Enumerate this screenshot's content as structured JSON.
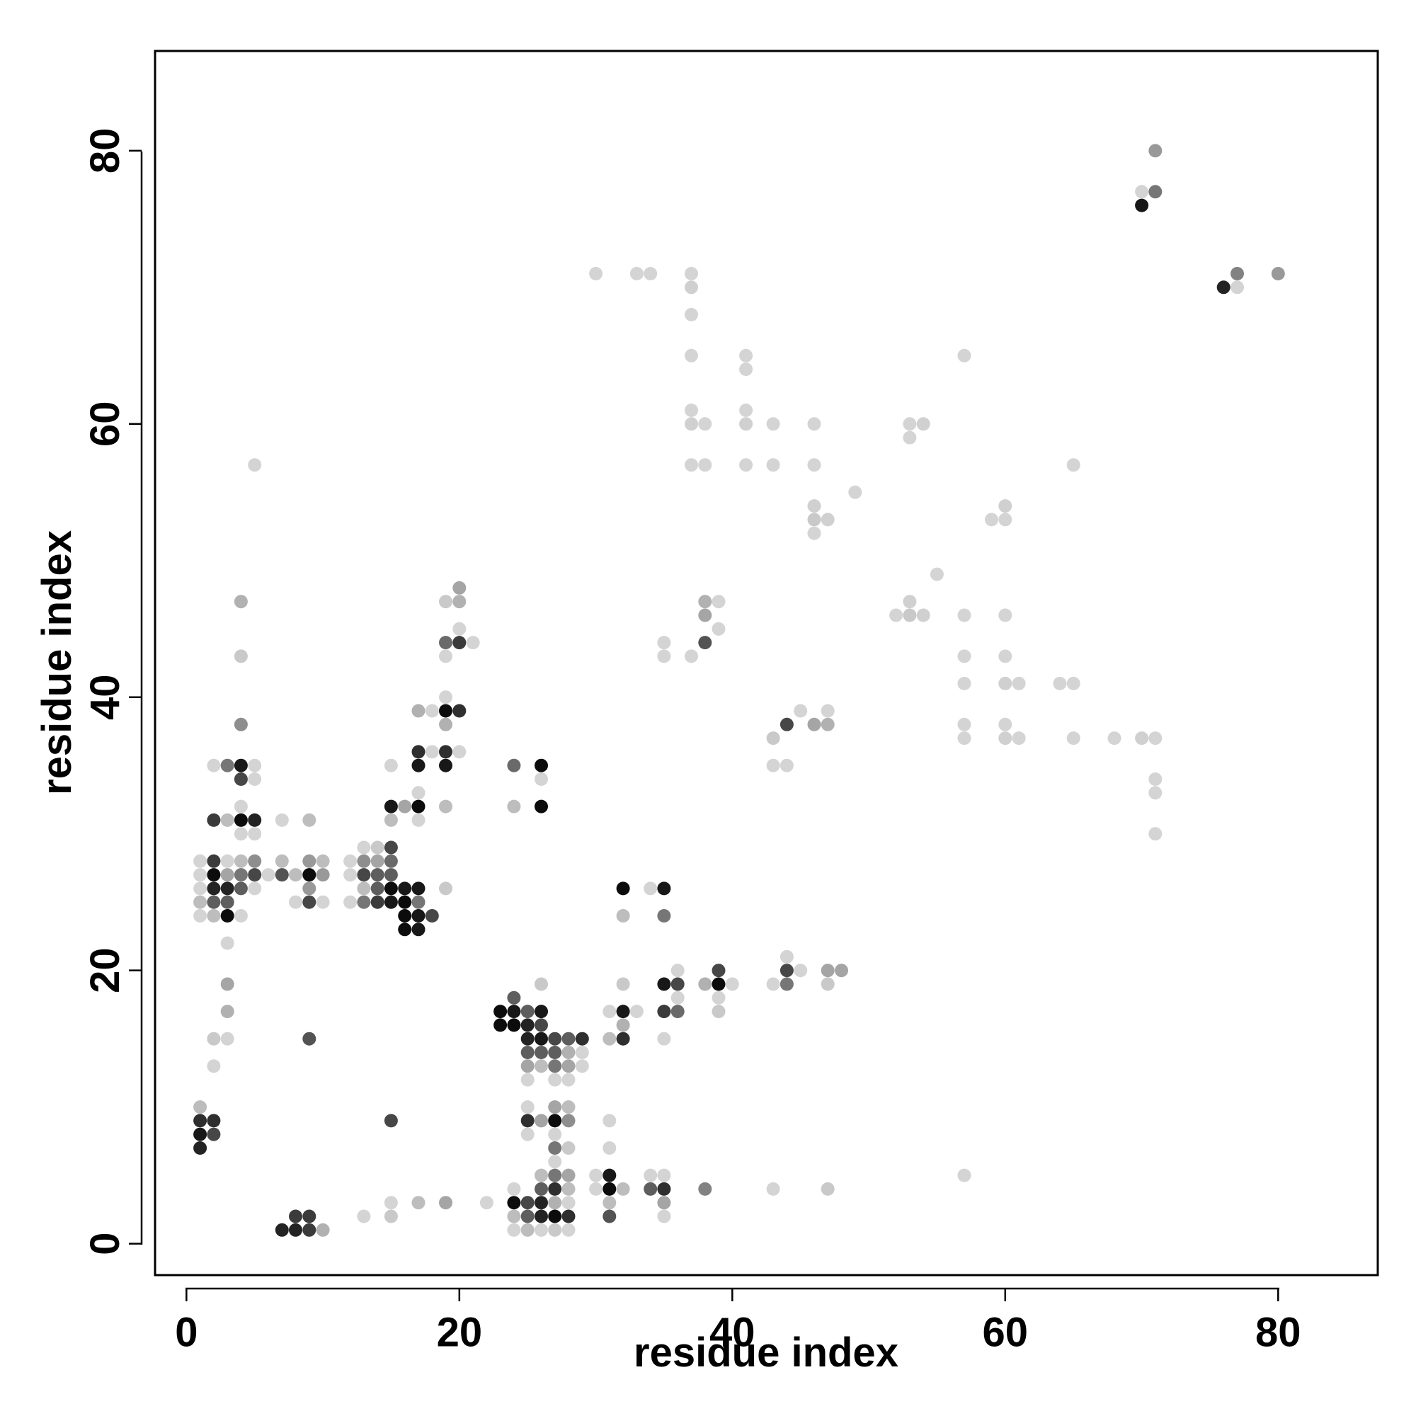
{
  "chart_data": {
    "type": "scatter",
    "title": "",
    "xlabel": "residue index",
    "ylabel": "residue index",
    "xlim": [
      -2.3,
      87.3
    ],
    "ylim": [
      -2.3,
      87.3
    ],
    "x_ticks": [
      0,
      20,
      40,
      60,
      80
    ],
    "y_ticks": [
      0,
      20,
      40,
      60,
      80
    ],
    "x_tick_labels": [
      "0",
      "20",
      "40",
      "60",
      "80"
    ],
    "y_tick_labels": [
      "0",
      "20",
      "40",
      "60",
      "80"
    ],
    "grid": false,
    "legend": "none",
    "value_encoding": "grayscale intensity (0 = light, 1 = dark)",
    "points": [
      [
        71,
        80,
        0.35
      ],
      [
        70,
        77,
        0.1
      ],
      [
        71,
        77,
        0.5
      ],
      [
        70,
        76,
        0.9
      ],
      [
        76,
        70,
        0.85
      ],
      [
        77,
        71,
        0.45
      ],
      [
        77,
        70,
        0.1
      ],
      [
        80,
        71,
        0.35
      ],
      [
        30,
        71,
        0.1
      ],
      [
        33,
        71,
        0.1
      ],
      [
        34,
        71,
        0.1
      ],
      [
        37,
        71,
        0.1
      ],
      [
        37,
        70,
        0.12
      ],
      [
        37,
        68,
        0.1
      ],
      [
        37,
        65,
        0.1
      ],
      [
        41,
        65,
        0.1
      ],
      [
        41,
        64,
        0.1
      ],
      [
        37,
        61,
        0.1
      ],
      [
        41,
        61,
        0.1
      ],
      [
        37,
        60,
        0.12
      ],
      [
        38,
        60,
        0.1
      ],
      [
        41,
        60,
        0.12
      ],
      [
        43,
        60,
        0.1
      ],
      [
        46,
        60,
        0.1
      ],
      [
        53,
        60,
        0.1
      ],
      [
        54,
        60,
        0.12
      ],
      [
        53,
        59,
        0.1
      ],
      [
        37,
        57,
        0.1
      ],
      [
        38,
        57,
        0.1
      ],
      [
        41,
        57,
        0.1
      ],
      [
        43,
        57,
        0.1
      ],
      [
        46,
        57,
        0.1
      ],
      [
        65,
        57,
        0.1
      ],
      [
        5,
        57,
        0.1
      ],
      [
        49,
        55,
        0.1
      ],
      [
        46,
        54,
        0.12
      ],
      [
        46,
        53,
        0.15
      ],
      [
        47,
        53,
        0.12
      ],
      [
        46,
        52,
        0.1
      ],
      [
        59,
        53,
        0.1
      ],
      [
        60,
        53,
        0.1
      ],
      [
        60,
        54,
        0.12
      ],
      [
        57,
        65,
        0.1
      ],
      [
        55,
        49,
        0.1
      ],
      [
        52,
        46,
        0.1
      ],
      [
        53,
        46,
        0.15
      ],
      [
        53,
        47,
        0.12
      ],
      [
        54,
        46,
        0.12
      ],
      [
        57,
        46,
        0.1
      ],
      [
        60,
        46,
        0.1
      ],
      [
        57,
        43,
        0.1
      ],
      [
        60,
        43,
        0.1
      ],
      [
        57,
        41,
        0.1
      ],
      [
        60,
        41,
        0.12
      ],
      [
        61,
        41,
        0.1
      ],
      [
        64,
        41,
        0.1
      ],
      [
        65,
        41,
        0.1
      ],
      [
        57,
        38,
        0.1
      ],
      [
        60,
        38,
        0.1
      ],
      [
        57,
        37,
        0.1
      ],
      [
        60,
        37,
        0.12
      ],
      [
        61,
        37,
        0.1
      ],
      [
        65,
        37,
        0.1
      ],
      [
        68,
        37,
        0.1
      ],
      [
        70,
        37,
        0.12
      ],
      [
        71,
        37,
        0.1
      ],
      [
        71,
        34,
        0.1
      ],
      [
        71,
        33,
        0.1
      ],
      [
        71,
        30,
        0.1
      ],
      [
        57,
        5,
        0.1
      ],
      [
        38,
        47,
        0.25
      ],
      [
        39,
        47,
        0.1
      ],
      [
        38,
        46,
        0.3
      ],
      [
        39,
        45,
        0.1
      ],
      [
        35,
        44,
        0.1
      ],
      [
        35,
        43,
        0.1
      ],
      [
        37,
        43,
        0.1
      ],
      [
        38,
        44,
        0.65
      ],
      [
        43,
        37,
        0.15
      ],
      [
        44,
        38,
        0.7
      ],
      [
        45,
        39,
        0.1
      ],
      [
        43,
        35,
        0.1
      ],
      [
        44,
        35,
        0.1
      ],
      [
        46,
        38,
        0.3
      ],
      [
        47,
        38,
        0.25
      ],
      [
        47,
        39,
        0.1
      ],
      [
        43,
        19,
        0.1
      ],
      [
        44,
        19,
        0.5
      ],
      [
        44,
        20,
        0.7
      ],
      [
        44,
        21,
        0.1
      ],
      [
        45,
        20,
        0.1
      ],
      [
        47,
        20,
        0.3
      ],
      [
        48,
        20,
        0.3
      ],
      [
        47,
        19,
        0.15
      ],
      [
        38,
        19,
        0.25
      ],
      [
        39,
        19,
        0.95
      ],
      [
        39,
        20,
        0.7
      ],
      [
        40,
        19,
        0.1
      ],
      [
        39,
        18,
        0.1
      ],
      [
        39,
        17,
        0.15
      ],
      [
        35,
        19,
        0.9
      ],
      [
        36,
        19,
        0.7
      ],
      [
        36,
        20,
        0.1
      ],
      [
        35,
        17,
        0.75
      ],
      [
        36,
        17,
        0.55
      ],
      [
        36,
        18,
        0.1
      ],
      [
        35,
        15,
        0.1
      ],
      [
        32,
        26,
        0.95
      ],
      [
        34,
        26,
        0.1
      ],
      [
        35,
        26,
        0.9
      ],
      [
        32,
        24,
        0.2
      ],
      [
        35,
        24,
        0.5
      ],
      [
        31,
        17,
        0.1
      ],
      [
        32,
        17,
        0.9
      ],
      [
        33,
        17,
        0.1
      ],
      [
        32,
        19,
        0.15
      ],
      [
        32,
        16,
        0.25
      ],
      [
        31,
        15,
        0.2
      ],
      [
        32,
        15,
        0.8
      ],
      [
        38,
        4,
        0.45
      ],
      [
        43,
        4,
        0.1
      ],
      [
        47,
        4,
        0.15
      ],
      [
        31,
        9,
        0.1
      ],
      [
        31,
        7,
        0.1
      ],
      [
        31,
        5,
        0.9
      ],
      [
        31,
        4,
        0.95
      ],
      [
        31,
        3,
        0.2
      ],
      [
        31,
        2,
        0.65
      ],
      [
        30,
        5,
        0.1
      ],
      [
        30,
        4,
        0.1
      ],
      [
        32,
        4,
        0.2
      ],
      [
        34,
        5,
        0.1
      ],
      [
        34,
        4,
        0.6
      ],
      [
        35,
        4,
        0.8
      ],
      [
        35,
        5,
        0.1
      ],
      [
        35,
        3,
        0.3
      ],
      [
        35,
        2,
        0.1
      ],
      [
        23,
        17,
        0.95
      ],
      [
        24,
        17,
        0.9
      ],
      [
        25,
        17,
        0.6
      ],
      [
        26,
        17,
        0.9
      ],
      [
        24,
        18,
        0.6
      ],
      [
        23,
        16,
        0.95
      ],
      [
        24,
        16,
        0.95
      ],
      [
        25,
        16,
        0.85
      ],
      [
        26,
        16,
        0.7
      ],
      [
        25,
        15,
        0.85
      ],
      [
        26,
        15,
        0.9
      ],
      [
        27,
        15,
        0.7
      ],
      [
        28,
        15,
        0.6
      ],
      [
        29,
        15,
        0.8
      ],
      [
        25,
        14,
        0.6
      ],
      [
        26,
        14,
        0.6
      ],
      [
        27,
        14,
        0.6
      ],
      [
        28,
        14,
        0.25
      ],
      [
        29,
        14,
        0.1
      ],
      [
        25,
        13,
        0.3
      ],
      [
        26,
        13,
        0.2
      ],
      [
        27,
        13,
        0.5
      ],
      [
        28,
        13,
        0.3
      ],
      [
        29,
        13,
        0.1
      ],
      [
        25,
        12,
        0.1
      ],
      [
        27,
        12,
        0.1
      ],
      [
        28,
        12,
        0.1
      ],
      [
        26,
        19,
        0.15
      ],
      [
        24,
        35,
        0.55
      ],
      [
        24,
        32,
        0.2
      ],
      [
        26,
        35,
        0.95
      ],
      [
        26,
        34,
        0.1
      ],
      [
        26,
        32,
        0.95
      ],
      [
        25,
        10,
        0.1
      ],
      [
        25,
        9,
        0.8
      ],
      [
        26,
        9,
        0.3
      ],
      [
        27,
        9,
        0.95
      ],
      [
        27,
        10,
        0.3
      ],
      [
        28,
        10,
        0.2
      ],
      [
        28,
        9,
        0.4
      ],
      [
        25,
        8,
        0.1
      ],
      [
        27,
        8,
        0.1
      ],
      [
        27,
        7,
        0.5
      ],
      [
        28,
        7,
        0.15
      ],
      [
        27,
        6,
        0.1
      ],
      [
        27,
        5,
        0.5
      ],
      [
        28,
        5,
        0.3
      ],
      [
        26,
        5,
        0.2
      ],
      [
        24,
        4,
        0.1
      ],
      [
        26,
        4,
        0.6
      ],
      [
        27,
        4,
        0.8
      ],
      [
        28,
        4,
        0.2
      ],
      [
        22,
        3,
        0.1
      ],
      [
        24,
        3,
        0.95
      ],
      [
        25,
        3,
        0.7
      ],
      [
        26,
        3,
        0.85
      ],
      [
        27,
        3,
        0.25
      ],
      [
        28,
        3,
        0.1
      ],
      [
        24,
        2,
        0.2
      ],
      [
        25,
        2,
        0.6
      ],
      [
        26,
        2,
        0.85
      ],
      [
        27,
        2,
        0.95
      ],
      [
        28,
        2,
        0.8
      ],
      [
        24,
        1,
        0.1
      ],
      [
        25,
        1,
        0.2
      ],
      [
        26,
        1,
        0.1
      ],
      [
        27,
        1,
        0.15
      ],
      [
        28,
        1,
        0.1
      ],
      [
        19,
        47,
        0.15
      ],
      [
        20,
        48,
        0.3
      ],
      [
        20,
        47,
        0.25
      ],
      [
        20,
        45,
        0.1
      ],
      [
        19,
        44,
        0.55
      ],
      [
        20,
        44,
        0.75
      ],
      [
        21,
        44,
        0.1
      ],
      [
        19,
        43,
        0.1
      ],
      [
        19,
        40,
        0.1
      ],
      [
        18,
        39,
        0.1
      ],
      [
        19,
        39,
        0.95
      ],
      [
        20,
        39,
        0.8
      ],
      [
        19,
        38,
        0.25
      ],
      [
        17,
        39,
        0.25
      ],
      [
        17,
        36,
        0.8
      ],
      [
        18,
        36,
        0.1
      ],
      [
        19,
        36,
        0.8
      ],
      [
        20,
        36,
        0.1
      ],
      [
        17,
        35,
        0.9
      ],
      [
        19,
        35,
        0.9
      ],
      [
        17,
        33,
        0.1
      ],
      [
        15,
        32,
        0.9
      ],
      [
        16,
        32,
        0.3
      ],
      [
        17,
        32,
        0.95
      ],
      [
        19,
        32,
        0.2
      ],
      [
        15,
        31,
        0.2
      ],
      [
        17,
        31,
        0.1
      ],
      [
        15,
        35,
        0.1
      ],
      [
        13,
        29,
        0.1
      ],
      [
        14,
        29,
        0.15
      ],
      [
        15,
        29,
        0.7
      ],
      [
        12,
        28,
        0.1
      ],
      [
        13,
        28,
        0.4
      ],
      [
        14,
        28,
        0.3
      ],
      [
        15,
        28,
        0.55
      ],
      [
        12,
        27,
        0.1
      ],
      [
        13,
        27,
        0.7
      ],
      [
        14,
        27,
        0.6
      ],
      [
        15,
        27,
        0.6
      ],
      [
        13,
        26,
        0.2
      ],
      [
        14,
        26,
        0.6
      ],
      [
        15,
        26,
        0.95
      ],
      [
        16,
        26,
        0.9
      ],
      [
        17,
        26,
        0.9
      ],
      [
        19,
        26,
        0.15
      ],
      [
        12,
        25,
        0.1
      ],
      [
        13,
        25,
        0.5
      ],
      [
        14,
        25,
        0.75
      ],
      [
        15,
        25,
        0.9
      ],
      [
        16,
        25,
        0.95
      ],
      [
        17,
        25,
        0.5
      ],
      [
        16,
        24,
        0.95
      ],
      [
        17,
        24,
        0.9
      ],
      [
        18,
        24,
        0.7
      ],
      [
        16,
        23,
        0.95
      ],
      [
        17,
        23,
        0.9
      ],
      [
        15,
        9,
        0.7
      ],
      [
        15,
        3,
        0.1
      ],
      [
        15,
        2,
        0.15
      ],
      [
        13,
        2,
        0.1
      ],
      [
        17,
        3,
        0.2
      ],
      [
        19,
        3,
        0.3
      ],
      [
        2,
        35,
        0.1
      ],
      [
        3,
        35,
        0.5
      ],
      [
        4,
        35,
        0.9
      ],
      [
        5,
        35,
        0.1
      ],
      [
        4,
        34,
        0.7
      ],
      [
        5,
        34,
        0.1
      ],
      [
        4,
        38,
        0.4
      ],
      [
        4,
        47,
        0.25
      ],
      [
        4,
        43,
        0.15
      ],
      [
        4,
        32,
        0.1
      ],
      [
        2,
        31,
        0.75
      ],
      [
        3,
        31,
        0.2
      ],
      [
        4,
        31,
        0.95
      ],
      [
        5,
        31,
        0.85
      ],
      [
        4,
        30,
        0.1
      ],
      [
        5,
        30,
        0.1
      ],
      [
        1,
        28,
        0.1
      ],
      [
        2,
        28,
        0.75
      ],
      [
        3,
        28,
        0.1
      ],
      [
        4,
        28,
        0.2
      ],
      [
        5,
        28,
        0.4
      ],
      [
        1,
        27,
        0.1
      ],
      [
        2,
        27,
        0.95
      ],
      [
        3,
        27,
        0.3
      ],
      [
        4,
        27,
        0.5
      ],
      [
        5,
        27,
        0.7
      ],
      [
        6,
        27,
        0.1
      ],
      [
        1,
        26,
        0.1
      ],
      [
        2,
        26,
        0.85
      ],
      [
        3,
        26,
        0.85
      ],
      [
        4,
        26,
        0.6
      ],
      [
        5,
        26,
        0.1
      ],
      [
        1,
        25,
        0.2
      ],
      [
        2,
        25,
        0.6
      ],
      [
        3,
        25,
        0.6
      ],
      [
        1,
        24,
        0.1
      ],
      [
        2,
        24,
        0.2
      ],
      [
        3,
        24,
        0.95
      ],
      [
        4,
        24,
        0.1
      ],
      [
        3,
        22,
        0.1
      ],
      [
        3,
        19,
        0.3
      ],
      [
        3,
        17,
        0.25
      ],
      [
        2,
        15,
        0.15
      ],
      [
        3,
        15,
        0.1
      ],
      [
        2,
        13,
        0.1
      ],
      [
        7,
        31,
        0.1
      ],
      [
        9,
        31,
        0.2
      ],
      [
        7,
        28,
        0.2
      ],
      [
        9,
        28,
        0.35
      ],
      [
        10,
        28,
        0.2
      ],
      [
        7,
        27,
        0.65
      ],
      [
        8,
        27,
        0.2
      ],
      [
        9,
        27,
        0.95
      ],
      [
        10,
        27,
        0.35
      ],
      [
        9,
        26,
        0.35
      ],
      [
        8,
        25,
        0.1
      ],
      [
        9,
        25,
        0.7
      ],
      [
        10,
        25,
        0.1
      ],
      [
        9,
        15,
        0.65
      ],
      [
        1,
        10,
        0.2
      ],
      [
        1,
        9,
        0.8
      ],
      [
        2,
        9,
        0.8
      ],
      [
        1,
        8,
        0.9
      ],
      [
        2,
        8,
        0.7
      ],
      [
        1,
        7,
        0.85
      ],
      [
        7,
        1,
        0.85
      ],
      [
        8,
        2,
        0.75
      ],
      [
        9,
        2,
        0.75
      ],
      [
        8,
        1,
        0.85
      ],
      [
        9,
        1,
        0.75
      ],
      [
        10,
        1,
        0.25
      ]
    ]
  }
}
